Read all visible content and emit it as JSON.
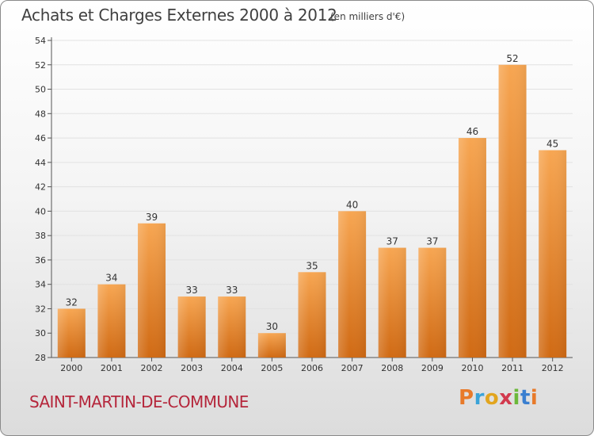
{
  "header": {
    "title": "Achats et Charges Externes 2000 à 2012",
    "subtitle": "(en milliers d'€)"
  },
  "footer": {
    "commune": "SAINT-MARTIN-DE-COMMUNE",
    "logo_text": "Proxiti",
    "logo_colors": [
      "#e87a2a",
      "#3aa3d8",
      "#e2a51e",
      "#d23a4e",
      "#6cb83a",
      "#3a7fd0",
      "#e87a2a"
    ]
  },
  "chart_data": {
    "type": "bar",
    "categories": [
      "2000",
      "2001",
      "2002",
      "2003",
      "2004",
      "2005",
      "2006",
      "2007",
      "2008",
      "2009",
      "2010",
      "2011",
      "2012"
    ],
    "values": [
      32,
      34,
      39,
      33,
      33,
      30,
      35,
      40,
      37,
      37,
      46,
      52,
      45
    ],
    "ylim": [
      28,
      54
    ],
    "yticks": [
      28,
      30,
      32,
      34,
      36,
      38,
      40,
      42,
      44,
      46,
      48,
      50,
      52,
      54
    ],
    "grid": "horizontal",
    "bar_color_top": "#f7a652",
    "bar_color_bottom": "#d06a14",
    "title": "Achats et Charges Externes 2000 à 2012",
    "subtitle": "(en milliers d'€)"
  }
}
